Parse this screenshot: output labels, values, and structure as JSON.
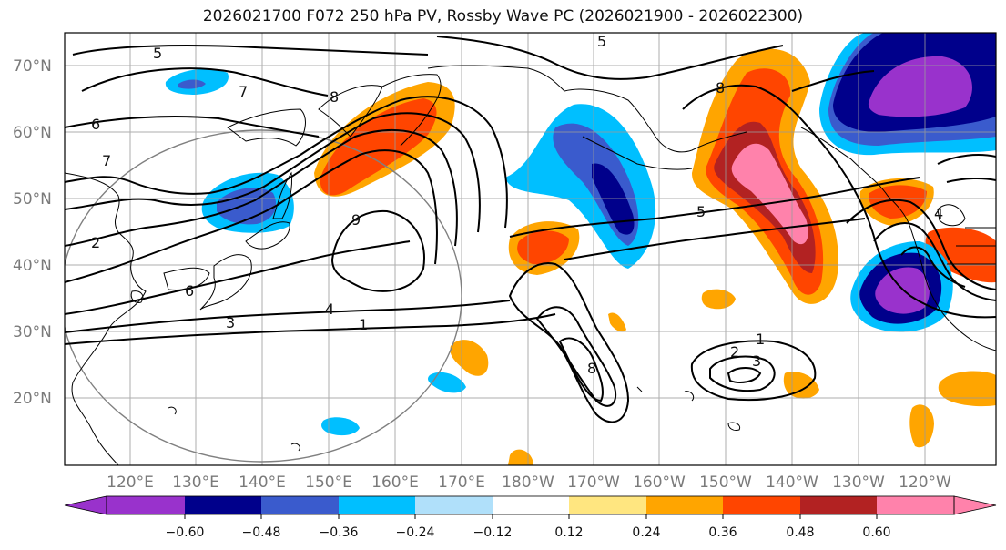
{
  "title": "2026021700 F072 250 hPa PV, Rossby Wave PC (2026021900 - 2026022300)",
  "map": {
    "lat_ticks": [
      "70°N",
      "60°N",
      "50°N",
      "40°N",
      "30°N",
      "20°N"
    ],
    "lon_ticks": [
      "120°E",
      "130°E",
      "140°E",
      "150°E",
      "160°E",
      "170°E",
      "180°W",
      "170°W",
      "160°W",
      "150°W",
      "140°W",
      "130°W",
      "120°W"
    ],
    "contour_labels": [
      "5",
      "5",
      "7",
      "8",
      "6",
      "7",
      "9",
      "2",
      "6",
      "4",
      "3",
      "1",
      "8",
      "5",
      "1",
      "2",
      "3",
      "8",
      "4"
    ]
  },
  "colorbar": {
    "ticks": [
      "−0.60",
      "−0.48",
      "−0.36",
      "−0.24",
      "−0.12",
      "0.12",
      "0.24",
      "0.36",
      "0.48",
      "0.60"
    ],
    "colors": [
      "#9932cc",
      "#00008b",
      "#3a5bcd",
      "#00bfff",
      "#b0e0fa",
      "#ffffff",
      "#ffe680",
      "#ffa500",
      "#ff4500",
      "#b22222",
      "#ff82ab"
    ]
  }
}
